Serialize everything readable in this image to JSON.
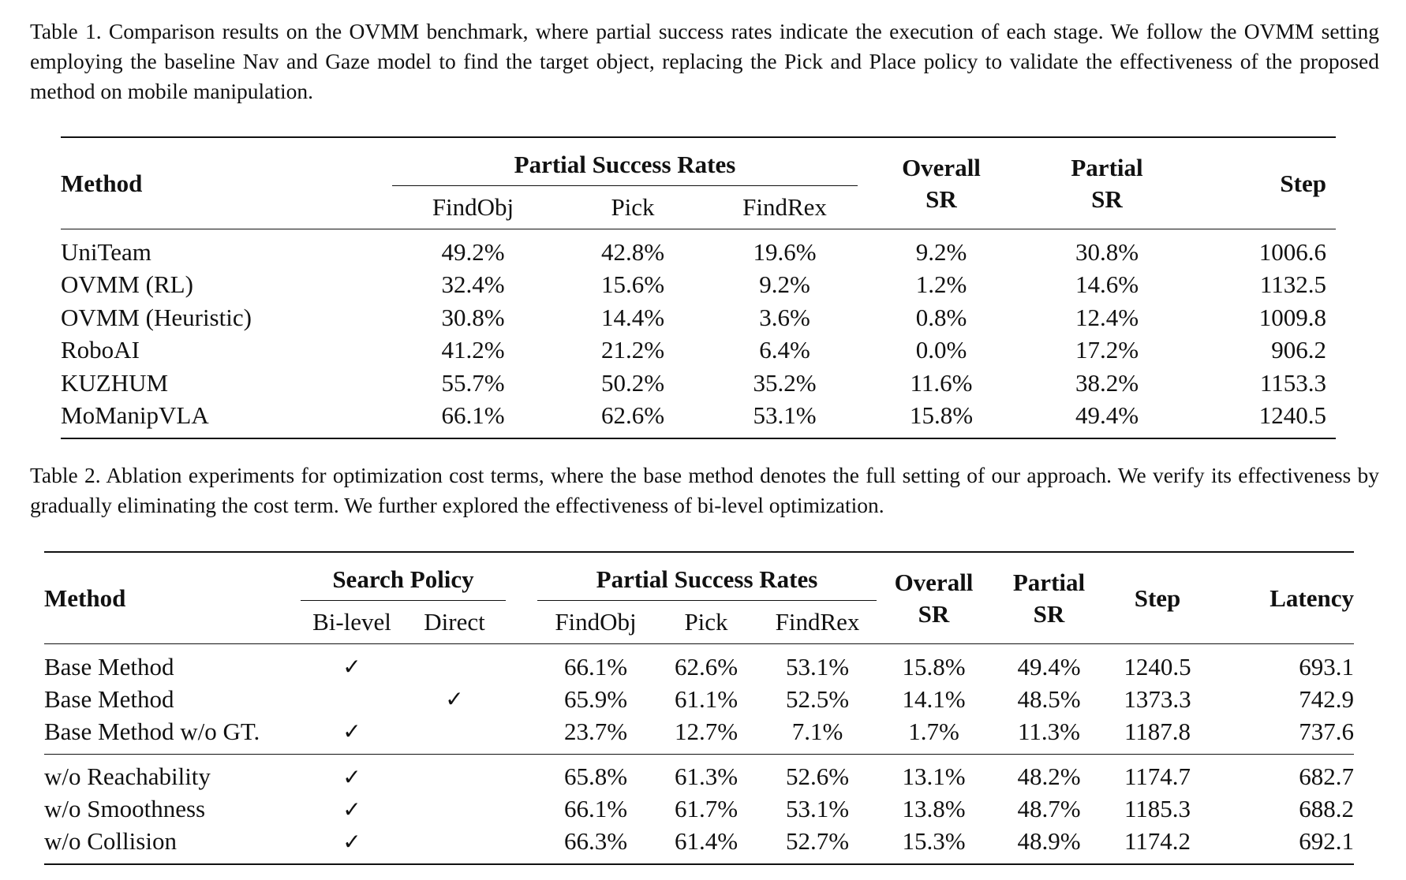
{
  "table1": {
    "caption": "Table 1. Comparison results on the OVMM benchmark, where partial success rates indicate the execution of each stage. We follow the OVMM setting employing the baseline Nav and Gaze model to find the target object, replacing the Pick and Place policy to validate the effectiveness of the proposed method on mobile manipulation.",
    "headers": {
      "method": "Method",
      "partial_group": "Partial Success Rates",
      "findobj": "FindObj",
      "pick": "Pick",
      "findrex": "FindRex",
      "overall_1": "Overall",
      "overall_2": "SR",
      "partial_1": "Partial",
      "partial_2": "SR",
      "step": "Step"
    },
    "rows": [
      {
        "method": "UniTeam",
        "findobj": "49.2%",
        "pick": "42.8%",
        "findrex": "19.6%",
        "overall": "9.2%",
        "partial": "30.8%",
        "step": "1006.6"
      },
      {
        "method": "OVMM (RL)",
        "findobj": "32.4%",
        "pick": "15.6%",
        "findrex": "9.2%",
        "overall": "1.2%",
        "partial": "14.6%",
        "step": "1132.5"
      },
      {
        "method": "OVMM (Heuristic)",
        "findobj": "30.8%",
        "pick": "14.4%",
        "findrex": "3.6%",
        "overall": "0.8%",
        "partial": "12.4%",
        "step": "1009.8"
      },
      {
        "method": "RoboAI",
        "findobj": "41.2%",
        "pick": "21.2%",
        "findrex": "6.4%",
        "overall": "0.0%",
        "partial": "17.2%",
        "step": "906.2"
      },
      {
        "method": "KUZHUM",
        "findobj": "55.7%",
        "pick": "50.2%",
        "findrex": "35.2%",
        "overall": "11.6%",
        "partial": "38.2%",
        "step": "1153.3"
      },
      {
        "method": "MoManipVLA",
        "findobj": "66.1%",
        "pick": "62.6%",
        "findrex": "53.1%",
        "overall": "15.8%",
        "partial": "49.4%",
        "step": "1240.5"
      }
    ]
  },
  "table2": {
    "caption": "Table 2. Ablation experiments for optimization cost terms, where the base method denotes the full setting of our approach. We verify its effectiveness by gradually eliminating the cost term. We further explored the effectiveness of bi-level optimization.",
    "headers": {
      "method": "Method",
      "search_group": "Search Policy",
      "bilevel": "Bi-level",
      "direct": "Direct",
      "partial_group": "Partial Success Rates",
      "findobj": "FindObj",
      "pick": "Pick",
      "findrex": "FindRex",
      "overall_1": "Overall",
      "overall_2": "SR",
      "partial_1": "Partial",
      "partial_2": "SR",
      "step": "Step",
      "latency": "Latency"
    },
    "check_mark": "✓",
    "rows": [
      {
        "method": "Base Method",
        "bilevel": "✓",
        "direct": "",
        "findobj": "66.1%",
        "pick": "62.6%",
        "findrex": "53.1%",
        "overall": "15.8%",
        "partial": "49.4%",
        "step": "1240.5",
        "latency": "693.1"
      },
      {
        "method": "Base Method",
        "bilevel": "",
        "direct": "✓",
        "findobj": "65.9%",
        "pick": "61.1%",
        "findrex": "52.5%",
        "overall": "14.1%",
        "partial": "48.5%",
        "step": "1373.3",
        "latency": "742.9"
      },
      {
        "method": "Base Method w/o GT.",
        "bilevel": "✓",
        "direct": "",
        "findobj": "23.7%",
        "pick": "12.7%",
        "findrex": "7.1%",
        "overall": "1.7%",
        "partial": "11.3%",
        "step": "1187.8",
        "latency": "737.6"
      },
      {
        "method": "w/o Reachability",
        "bilevel": "✓",
        "direct": "",
        "findobj": "65.8%",
        "pick": "61.3%",
        "findrex": "52.6%",
        "overall": "13.1%",
        "partial": "48.2%",
        "step": "1174.7",
        "latency": "682.7"
      },
      {
        "method": "w/o Smoothness",
        "bilevel": "✓",
        "direct": "",
        "findobj": "66.1%",
        "pick": "61.7%",
        "findrex": "53.1%",
        "overall": "13.8%",
        "partial": "48.7%",
        "step": "1185.3",
        "latency": "688.2"
      },
      {
        "method": "w/o Collision",
        "bilevel": "✓",
        "direct": "",
        "findobj": "66.3%",
        "pick": "61.4%",
        "findrex": "52.7%",
        "overall": "15.3%",
        "partial": "48.9%",
        "step": "1174.2",
        "latency": "692.1"
      }
    ]
  }
}
